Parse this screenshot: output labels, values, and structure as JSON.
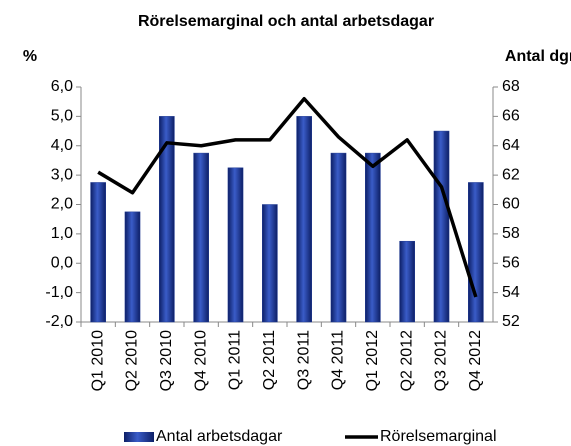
{
  "chart_data": {
    "type": "bar_line",
    "title": "Rörelsemarginal och antal arbetsdagar",
    "y_label": "%",
    "y2_label": "Antal dgr",
    "categories": [
      "Q1 2010",
      "Q2 2010",
      "Q3 2010",
      "Q4 2010",
      "Q1 2011",
      "Q2 2011",
      "Q3 2011",
      "Q4 2011",
      "Q1 2012",
      "Q2 2012",
      "Q3 2012",
      "Q4 2012"
    ],
    "series": [
      {
        "name": "Antal arbetsdagar",
        "type": "bar",
        "axis": "y2",
        "color": "#1f3a93",
        "values": [
          61.5,
          59.5,
          66,
          63.5,
          62.5,
          60,
          66,
          63.5,
          63.5,
          57.5,
          65,
          61.5
        ]
      },
      {
        "name": "Rörelsemarginal",
        "type": "line",
        "color": "#000000",
        "values": [
          3.1,
          2.4,
          4.1,
          4.0,
          4.2,
          4.2,
          5.6,
          4.3,
          3.3,
          4.2,
          2.6,
          -1.15
        ]
      }
    ],
    "ylim": [
      -2,
      6
    ],
    "yticks": [
      {
        "value": -2,
        "label": "-2,0"
      },
      {
        "value": -1,
        "label": "-1,0"
      },
      {
        "value": 0,
        "label": "0,0"
      },
      {
        "value": 1,
        "label": "1,0"
      },
      {
        "value": 2,
        "label": "2,0"
      },
      {
        "value": 3,
        "label": "3,0"
      },
      {
        "value": 4,
        "label": "4,0"
      },
      {
        "value": 5,
        "label": "5,0"
      },
      {
        "value": 6,
        "label": "6,0"
      }
    ],
    "y2lim": [
      52,
      68
    ],
    "y2ticks": [
      52,
      54,
      56,
      58,
      60,
      62,
      64,
      66,
      68
    ]
  }
}
